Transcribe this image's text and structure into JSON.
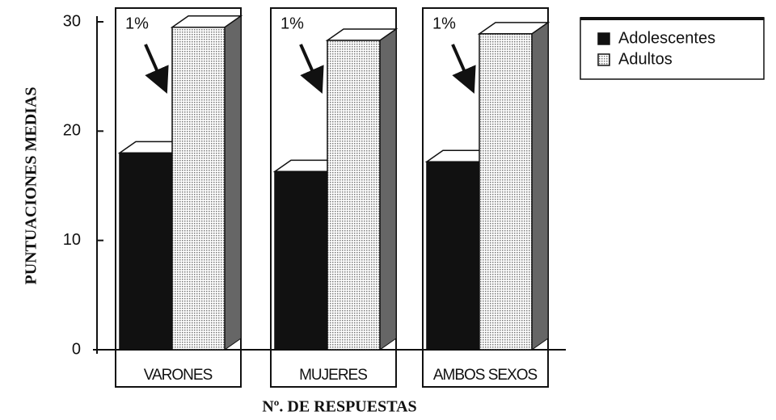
{
  "chart_data": {
    "type": "bar3d",
    "y_label": "PUNTUACIONES  MEDIAS",
    "x_label": "Nº. DE RESPUESTAS",
    "categories": [
      "VARONES",
      "MUJERES",
      "AMBOS SEXOS"
    ],
    "series": [
      {
        "name": "Adolescentes",
        "color": "#111111",
        "values": [
          18,
          16.3,
          17.2
        ]
      },
      {
        "name": "Adultos",
        "color": "#c8c8c8",
        "values": [
          29.5,
          28.3,
          28.9
        ]
      }
    ],
    "annotations": [
      "1%",
      "1%",
      "1%"
    ],
    "ylim": [
      0,
      30
    ],
    "yticks": [
      0,
      10,
      20,
      30
    ],
    "legend": "upper right"
  }
}
